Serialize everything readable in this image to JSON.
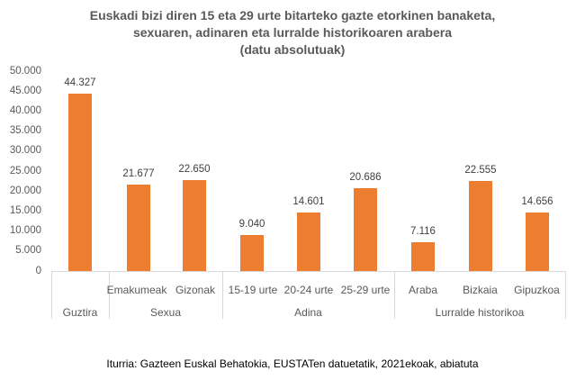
{
  "title": {
    "line1": "Euskadi bizi diren 15 eta 29 urte bitarteko gazte etorkinen banaketa,",
    "line2": "sexuaren, adinaren eta lurralde historikoaren arabera",
    "line3": "(datu absolutuak)"
  },
  "yaxis": {
    "ticks": [
      "50.000",
      "45.000",
      "40.000",
      "35.000",
      "30.000",
      "25.000",
      "20.000",
      "15.000",
      "10.000",
      "5.000",
      "0"
    ]
  },
  "bars": [
    {
      "category": "Guztira",
      "value": 44327,
      "label": "44.327"
    },
    {
      "category": "Emakumeak",
      "value": 21677,
      "label": "21.677"
    },
    {
      "category": "Gizonak",
      "value": 22650,
      "label": "22.650"
    },
    {
      "category": "15-19 urte",
      "value": 9040,
      "label": "9.040"
    },
    {
      "category": "20-24 urte",
      "value": 14601,
      "label": "14.601"
    },
    {
      "category": "25-29 urte",
      "value": 20686,
      "label": "20.686"
    },
    {
      "category": "Araba",
      "value": 7116,
      "label": "7.116"
    },
    {
      "category": "Bizkaia",
      "value": 22555,
      "label": "22.555"
    },
    {
      "category": "Gipuzkoa",
      "value": 14656,
      "label": "14.656"
    }
  ],
  "groups": [
    {
      "label": "Guztira"
    },
    {
      "label": "Sexua"
    },
    {
      "label": "Adina"
    },
    {
      "label": "Lurralde historikoa"
    }
  ],
  "source": "Iturria: Gazteen Euskal Behatokia, EUSTATen datuetatik, 2021ekoak, abiatuta",
  "colors": {
    "bar": "#ed7d31",
    "text": "#595959",
    "grid": "#d9d9d9"
  },
  "chart_data": {
    "type": "bar",
    "title": "Euskadi bizi diren 15 eta 29 urte bitarteko gazte etorkinen banaketa, sexuaren, adinaren eta lurralde historikoaren arabera (datu absolutuak)",
    "categories": [
      "Guztira",
      "Emakumeak",
      "Gizonak",
      "15-19 urte",
      "20-24 urte",
      "25-29 urte",
      "Araba",
      "Bizkaia",
      "Gipuzkoa"
    ],
    "category_groups": [
      {
        "group": "Guztira",
        "categories": [
          "Guztira"
        ]
      },
      {
        "group": "Sexua",
        "categories": [
          "Emakumeak",
          "Gizonak"
        ]
      },
      {
        "group": "Adina",
        "categories": [
          "15-19 urte",
          "20-24 urte",
          "25-29 urte"
        ]
      },
      {
        "group": "Lurralde historikoa",
        "categories": [
          "Araba",
          "Bizkaia",
          "Gipuzkoa"
        ]
      }
    ],
    "values": [
      44327,
      21677,
      22650,
      9040,
      14601,
      20686,
      7116,
      22555,
      14656
    ],
    "data_labels": [
      "44.327",
      "21.677",
      "22.650",
      "9.040",
      "14.601",
      "20.686",
      "7.116",
      "22.555",
      "14.656"
    ],
    "xlabel": "",
    "ylabel": "",
    "ylim": [
      0,
      50000
    ],
    "ytick_step": 5000,
    "grid": false,
    "legend": null,
    "annotation": "Iturria: Gazteen Euskal Behatokia, EUSTATen datuetatik, 2021ekoak, abiatuta"
  }
}
